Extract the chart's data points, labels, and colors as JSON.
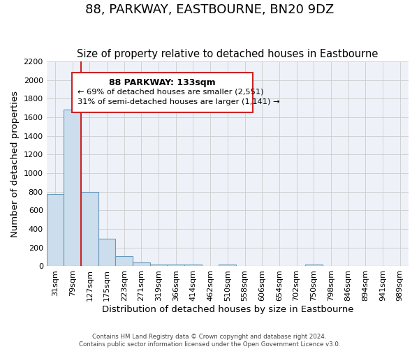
{
  "title": "88, PARKWAY, EASTBOURNE, BN20 9DZ",
  "subtitle": "Size of property relative to detached houses in Eastbourne",
  "xlabel": "Distribution of detached houses by size in Eastbourne",
  "ylabel": "Number of detached properties",
  "footer_line1": "Contains HM Land Registry data © Crown copyright and database right 2024.",
  "footer_line2": "Contains public sector information licensed under the Open Government Licence v3.0.",
  "categories": [
    "31sqm",
    "79sqm",
    "127sqm",
    "175sqm",
    "223sqm",
    "271sqm",
    "319sqm",
    "366sqm",
    "414sqm",
    "462sqm",
    "510sqm",
    "558sqm",
    "606sqm",
    "654sqm",
    "702sqm",
    "750sqm",
    "798sqm",
    "846sqm",
    "894sqm",
    "941sqm",
    "989sqm"
  ],
  "bar_values": [
    775,
    1680,
    795,
    295,
    110,
    38,
    22,
    18,
    18,
    5,
    18,
    0,
    0,
    0,
    0,
    18,
    0,
    0,
    0,
    0,
    0
  ],
  "bar_color": "#ccdded",
  "bar_edge_color": "#6699bb",
  "ylim": [
    0,
    2200
  ],
  "yticks": [
    0,
    200,
    400,
    600,
    800,
    1000,
    1200,
    1400,
    1600,
    1800,
    2000,
    2200
  ],
  "property_label": "88 PARKWAY: 133sqm",
  "annotation_line1": "← 69% of detached houses are smaller (2,551)",
  "annotation_line2": "31% of semi-detached houses are larger (1,141) →",
  "vline_x": 1.5,
  "grid_color": "#cccccc",
  "background_color": "#eef2f8",
  "title_fontsize": 13,
  "subtitle_fontsize": 10.5,
  "axis_label_fontsize": 9.5,
  "tick_fontsize": 8
}
